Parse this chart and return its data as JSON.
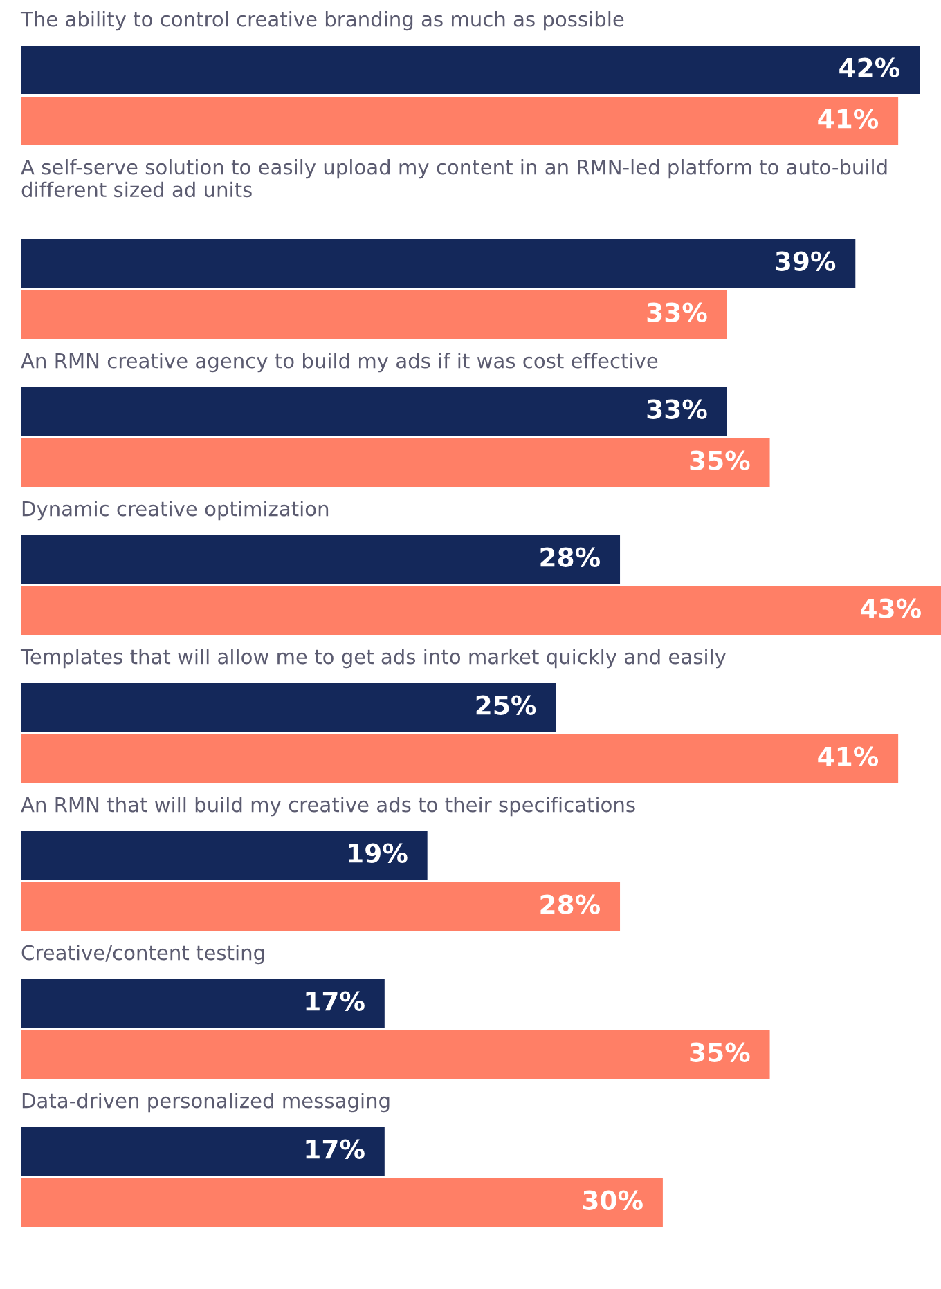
{
  "chart_data": {
    "type": "bar",
    "orientation": "horizontal",
    "categories": [
      "The ability to control creative branding as much as possible",
      "A self-serve solution to easily upload my content in an RMN-led platform to auto-build different sized ad units",
      "An RMN creative agency to build my ads if it was cost effective",
      "Dynamic creative optimization",
      "Templates that will allow me to get ads into market quickly and easily",
      "An RMN that will build my creative ads to their specifications",
      "Creative/content testing",
      "Data-driven personalized messaging"
    ],
    "series": [
      {
        "color": "#14285a",
        "values": [
          42,
          39,
          33,
          28,
          25,
          19,
          17,
          17
        ],
        "value_labels": [
          "42%",
          "39%",
          "33%",
          "28%",
          "25%",
          "19%",
          "17%",
          "17%"
        ]
      },
      {
        "color": "#ff7f66",
        "values": [
          41,
          33,
          35,
          43,
          41,
          28,
          35,
          30
        ],
        "value_labels": [
          "41%",
          "33%",
          "35%",
          "43%",
          "41%",
          "28%",
          "35%",
          "30%"
        ]
      }
    ]
  }
}
